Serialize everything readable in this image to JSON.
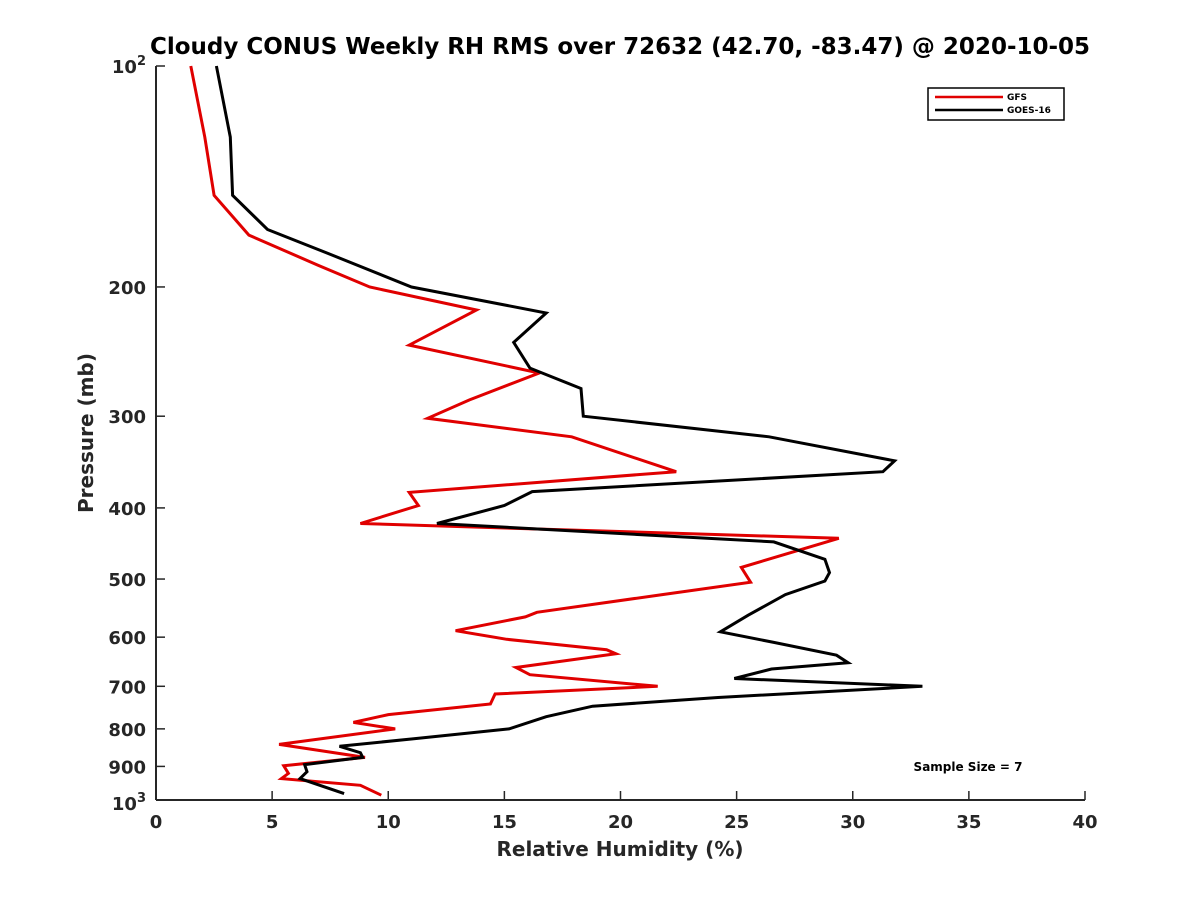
{
  "chart_data": {
    "type": "line",
    "title": "Cloudy CONUS Weekly RH RMS over 72632 (42.70, -83.47) @ 2020-10-05",
    "xlabel": "Relative Humidity (%)",
    "ylabel": "Pressure (mb)",
    "xlim": [
      0,
      40
    ],
    "ylim": [
      100,
      1000
    ],
    "y_scale": "log",
    "y_reversed": true,
    "grid": false,
    "legend_position": "top-right",
    "annotation": "Sample Size = 7",
    "x_ticks": [
      {
        "value": 0,
        "label": "0"
      },
      {
        "value": 5,
        "label": "5"
      },
      {
        "value": 10,
        "label": "10"
      },
      {
        "value": 15,
        "label": "15"
      },
      {
        "value": 20,
        "label": "20"
      },
      {
        "value": 25,
        "label": "25"
      },
      {
        "value": 30,
        "label": "30"
      },
      {
        "value": 35,
        "label": "35"
      },
      {
        "value": 40,
        "label": "40"
      }
    ],
    "y_ticks": [
      {
        "value": 100,
        "label": "10",
        "sup": "2"
      },
      {
        "value": 200,
        "label": "200",
        "sup": ""
      },
      {
        "value": 300,
        "label": "300",
        "sup": ""
      },
      {
        "value": 400,
        "label": "400",
        "sup": ""
      },
      {
        "value": 500,
        "label": "500",
        "sup": ""
      },
      {
        "value": 600,
        "label": "600",
        "sup": ""
      },
      {
        "value": 700,
        "label": "700",
        "sup": ""
      },
      {
        "value": 800,
        "label": "800",
        "sup": ""
      },
      {
        "value": 900,
        "label": "900",
        "sup": ""
      },
      {
        "value": 1000,
        "label": "10",
        "sup": "3"
      }
    ],
    "series": [
      {
        "name": "GFS",
        "color": "#e00000",
        "points": [
          {
            "x": 1.5,
            "y": 100
          },
          {
            "x": 2.1,
            "y": 125
          },
          {
            "x": 2.5,
            "y": 150
          },
          {
            "x": 4.0,
            "y": 170
          },
          {
            "x": 7.0,
            "y": 187
          },
          {
            "x": 9.2,
            "y": 200
          },
          {
            "x": 13.8,
            "y": 215
          },
          {
            "x": 10.9,
            "y": 240
          },
          {
            "x": 16.5,
            "y": 262
          },
          {
            "x": 13.5,
            "y": 285
          },
          {
            "x": 11.7,
            "y": 302
          },
          {
            "x": 17.9,
            "y": 320
          },
          {
            "x": 22.4,
            "y": 357
          },
          {
            "x": 10.9,
            "y": 381
          },
          {
            "x": 11.3,
            "y": 397
          },
          {
            "x": 8.8,
            "y": 420
          },
          {
            "x": 29.4,
            "y": 440
          },
          {
            "x": 25.2,
            "y": 482
          },
          {
            "x": 25.6,
            "y": 505
          },
          {
            "x": 21.8,
            "y": 525
          },
          {
            "x": 16.4,
            "y": 555
          },
          {
            "x": 15.9,
            "y": 563
          },
          {
            "x": 12.9,
            "y": 588
          },
          {
            "x": 15.1,
            "y": 604
          },
          {
            "x": 19.4,
            "y": 624
          },
          {
            "x": 19.8,
            "y": 632
          },
          {
            "x": 15.5,
            "y": 660
          },
          {
            "x": 16.1,
            "y": 675
          },
          {
            "x": 21.6,
            "y": 700
          },
          {
            "x": 14.6,
            "y": 717
          },
          {
            "x": 14.4,
            "y": 740
          },
          {
            "x": 10.0,
            "y": 765
          },
          {
            "x": 8.5,
            "y": 784
          },
          {
            "x": 10.3,
            "y": 800
          },
          {
            "x": 5.3,
            "y": 840
          },
          {
            "x": 9.0,
            "y": 875
          },
          {
            "x": 5.5,
            "y": 898
          },
          {
            "x": 5.7,
            "y": 920
          },
          {
            "x": 5.4,
            "y": 935
          },
          {
            "x": 8.8,
            "y": 955
          },
          {
            "x": 9.7,
            "y": 985
          }
        ]
      },
      {
        "name": "GOES-16",
        "color": "#000000",
        "points": [
          {
            "x": 2.6,
            "y": 100
          },
          {
            "x": 3.2,
            "y": 125
          },
          {
            "x": 3.3,
            "y": 150
          },
          {
            "x": 4.8,
            "y": 167
          },
          {
            "x": 7.4,
            "y": 180
          },
          {
            "x": 11.0,
            "y": 200
          },
          {
            "x": 16.8,
            "y": 217
          },
          {
            "x": 15.4,
            "y": 238
          },
          {
            "x": 16.1,
            "y": 258
          },
          {
            "x": 18.3,
            "y": 275
          },
          {
            "x": 18.4,
            "y": 300
          },
          {
            "x": 26.4,
            "y": 320
          },
          {
            "x": 31.8,
            "y": 345
          },
          {
            "x": 31.3,
            "y": 357
          },
          {
            "x": 16.2,
            "y": 380
          },
          {
            "x": 15.0,
            "y": 397
          },
          {
            "x": 12.1,
            "y": 420
          },
          {
            "x": 26.6,
            "y": 445
          },
          {
            "x": 28.8,
            "y": 470
          },
          {
            "x": 29.0,
            "y": 490
          },
          {
            "x": 28.8,
            "y": 503
          },
          {
            "x": 27.1,
            "y": 525
          },
          {
            "x": 25.5,
            "y": 560
          },
          {
            "x": 24.3,
            "y": 590
          },
          {
            "x": 26.6,
            "y": 610
          },
          {
            "x": 29.3,
            "y": 635
          },
          {
            "x": 29.8,
            "y": 650
          },
          {
            "x": 26.5,
            "y": 663
          },
          {
            "x": 24.9,
            "y": 683
          },
          {
            "x": 33.0,
            "y": 700
          },
          {
            "x": 24.2,
            "y": 725
          },
          {
            "x": 18.8,
            "y": 745
          },
          {
            "x": 16.8,
            "y": 770
          },
          {
            "x": 15.2,
            "y": 800
          },
          {
            "x": 11.1,
            "y": 825
          },
          {
            "x": 7.9,
            "y": 845
          },
          {
            "x": 8.8,
            "y": 862
          },
          {
            "x": 8.9,
            "y": 875
          },
          {
            "x": 6.4,
            "y": 895
          },
          {
            "x": 6.5,
            "y": 915
          },
          {
            "x": 6.2,
            "y": 935
          },
          {
            "x": 8.1,
            "y": 980
          }
        ]
      }
    ]
  }
}
